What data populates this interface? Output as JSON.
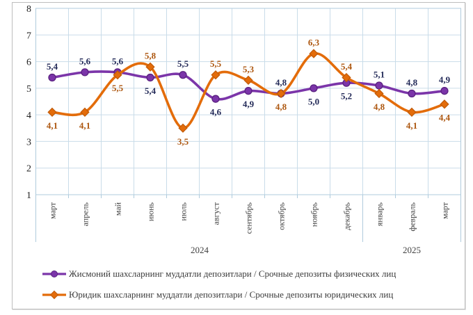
{
  "chart_data": {
    "type": "line",
    "title": "",
    "x": [
      "март",
      "апрель",
      "май",
      "июнь",
      "июль",
      "август",
      "сентябрь",
      "октябрь",
      "ноябрь",
      "декабрь",
      "январь",
      "февраль",
      "март"
    ],
    "year_groups": [
      {
        "label": "2024",
        "span": [
          0,
          9
        ]
      },
      {
        "label": "2025",
        "span": [
          10,
          12
        ]
      }
    ],
    "ylim": [
      1,
      8
    ],
    "yticks": [
      1,
      2,
      3,
      4,
      5,
      6,
      7,
      8
    ],
    "grid": true,
    "smooth_lines": true,
    "legend_position": "bottom-left",
    "decimal_separator": ",",
    "series": [
      {
        "name": "Жисмоний шахсларнинг  муддатли  депозитлари / Срочные депозиты физических лиц",
        "marker": "circle",
        "color": "#7b35a9",
        "marker_stroke": "#5a2180",
        "label_color": "#242b59",
        "values": [
          5.4,
          5.6,
          5.6,
          5.4,
          5.5,
          4.6,
          4.9,
          4.8,
          5.0,
          5.2,
          5.1,
          4.8,
          4.9
        ],
        "label_sides": [
          "above",
          "above",
          "above",
          "below",
          "above",
          "below",
          "below",
          "above",
          "below",
          "below",
          "above",
          "above",
          "above"
        ]
      },
      {
        "name": "Юридик шахсларнинг  муддатли  депозитлари / Срочные депозиты юридических лиц",
        "marker": "diamond",
        "color": "#e36c0a",
        "marker_stroke": "#c05a08",
        "label_color": "#ad5710",
        "values": [
          4.1,
          4.1,
          5.5,
          5.8,
          3.5,
          5.5,
          5.3,
          4.8,
          6.3,
          5.4,
          4.8,
          4.1,
          4.4
        ],
        "label_sides": [
          "below",
          "below",
          "below",
          "above",
          "below",
          "above",
          "above",
          "below",
          "above",
          "above",
          "below",
          "below",
          "below"
        ]
      }
    ]
  },
  "colors": {
    "grid": "#c9dce9",
    "plot_border": "#afcbdd",
    "frame_border": "#bdbdbd",
    "axis_text": "#1f1f1f",
    "category_text": "#404040",
    "year_text": "#3f3f3f",
    "legend_text": "#3a3a3a"
  }
}
